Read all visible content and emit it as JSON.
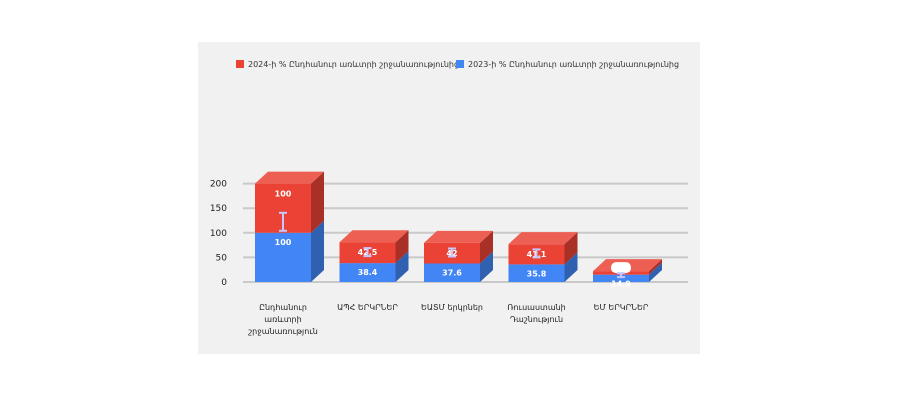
{
  "chart_data": {
    "type": "bar",
    "stacked": true,
    "style": "3d",
    "categories": [
      [
        "Ընդհանուր",
        "առևտրի",
        "շրջանառություն"
      ],
      [
        "ԱՊՀ ԵՐԿՐՆԵՐ"
      ],
      [
        "ԵԱՏՄ երկրներ"
      ],
      [
        "Ռուսաստանի",
        "Դաշնություն"
      ],
      [
        "ԵՄ ԵՐԿՐՆԵՐ"
      ]
    ],
    "series": [
      {
        "name": "2023-ի % Ընդհանուր առևտրի շրջանառությունից",
        "color": "#4285f4",
        "values": [
          100,
          38.4,
          37.6,
          35.8,
          14.9
        ]
      },
      {
        "name": "2024-ի % Ընդհանուր առևտրի շրջանառությունից",
        "color": "#ea4335",
        "values": [
          100,
          42.5,
          42,
          41.1,
          7.2
        ]
      }
    ],
    "ylim": [
      0,
      200
    ],
    "yticks": [
      0,
      50,
      100,
      150,
      200
    ],
    "grid": true,
    "legend_position": "top",
    "error_bars": true
  }
}
